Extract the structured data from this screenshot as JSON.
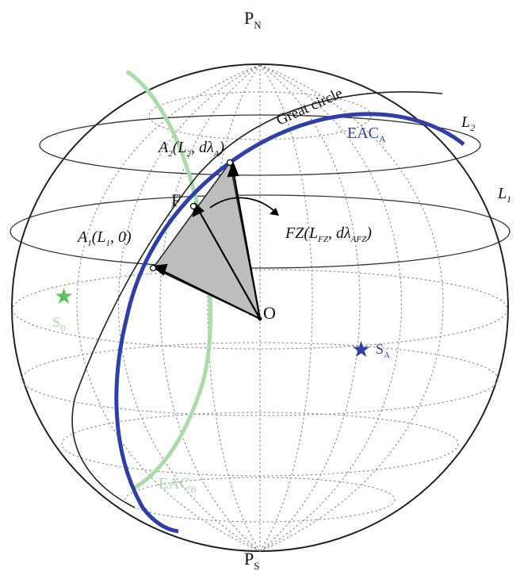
{
  "labels": {
    "north_pole": {
      "main": "P",
      "sub": "N"
    },
    "south_pole": {
      "main": "P",
      "sub": "S"
    },
    "great_circle": "Great circle",
    "eac_a": {
      "main": "EAC",
      "sub": "A"
    },
    "eac_b": {
      "main": "EAC",
      "sub": "B"
    },
    "l1": {
      "main": "L",
      "sub": "1"
    },
    "l2": {
      "main": "L",
      "sub": "2"
    },
    "point_a2": {
      "main": "A",
      "sub": "2",
      "args": "(L",
      "args_sub": "2",
      "args_rest": ", dλ",
      "args_sub2": "A",
      "close": ")"
    },
    "point_a1": {
      "main": "A",
      "sub": "1",
      "args": "(L",
      "args_sub": "1",
      "args_rest": ", 0)"
    },
    "point_f": "F",
    "point_fz": {
      "main": "FZ",
      "args": "(L",
      "args_sub": "FZ",
      "args_rest": ", dλ",
      "args_sub2": "AFZ",
      "close": ")"
    },
    "center": "O",
    "station_a": {
      "main": "S",
      "sub": "A"
    },
    "station_b": {
      "main": "S",
      "sub": "B"
    }
  },
  "colors": {
    "eac_a": "#2f3fa8",
    "eac_b": "#a9dca9",
    "great_circle": "#222222",
    "grid": "#8a8a8a",
    "triangle_fill": "#bdbdbd",
    "station_a_star": "#2f3fa8",
    "station_b_star": "#5cc35c"
  }
}
